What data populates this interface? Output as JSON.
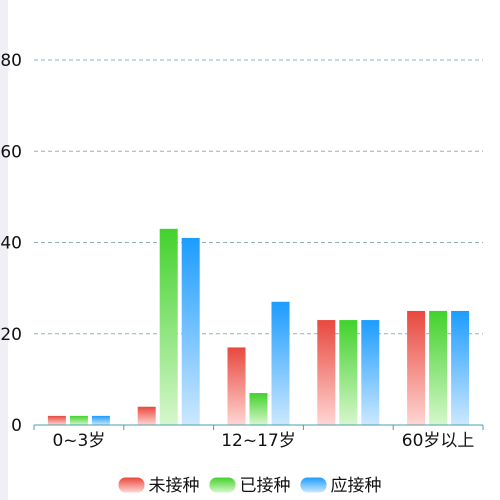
{
  "chart_data": {
    "type": "bar",
    "categories": [
      "0~3岁",
      "",
      "12~17岁",
      "",
      "60岁以上"
    ],
    "series": [
      {
        "name": "未接种",
        "values": [
          2,
          4,
          17,
          23,
          25
        ],
        "color_top": "#e8483e",
        "color_bottom": "#ffd6d3"
      },
      {
        "name": "已接种",
        "values": [
          2,
          43,
          7,
          23,
          25
        ],
        "color_top": "#43d12c",
        "color_bottom": "#d6f7cc"
      },
      {
        "name": "应接种",
        "values": [
          2,
          41,
          27,
          23,
          25
        ],
        "color_top": "#1c9cff",
        "color_bottom": "#cce8ff"
      }
    ],
    "x_tick_labels": [
      "0~3岁",
      "12~17岁",
      "60岁以上"
    ],
    "y_tick_labels": [
      "0",
      "20",
      "40",
      "60",
      "80"
    ],
    "ylim": [
      0,
      80
    ],
    "gridlines": "dashed",
    "legend_position": "bottom-center"
  }
}
